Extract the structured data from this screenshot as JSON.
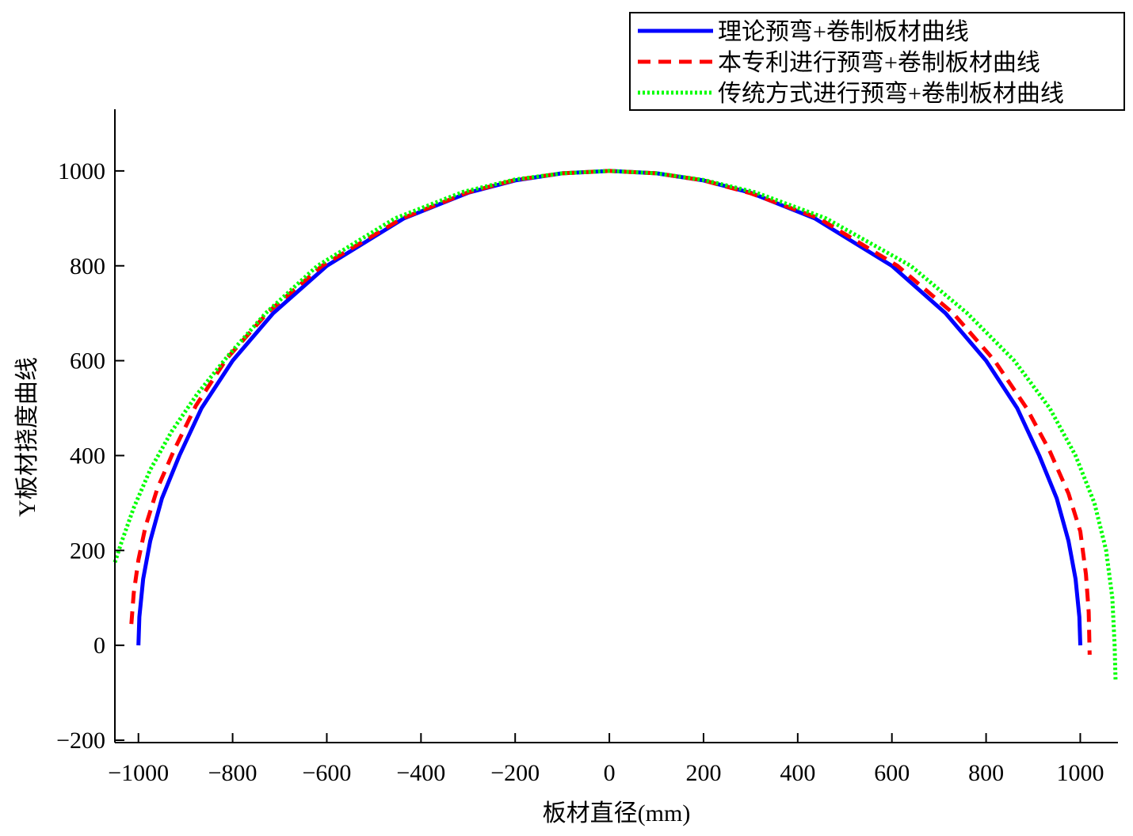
{
  "chart_data": {
    "type": "line",
    "title": "",
    "xlabel": "板材直径(mm)",
    "ylabel": "Y板材挠度曲线",
    "xlim": [
      -1050,
      1080
    ],
    "ylim": [
      -205,
      1130
    ],
    "xticks": [
      -1000,
      -800,
      -600,
      -400,
      -200,
      0,
      200,
      400,
      600,
      800,
      1000
    ],
    "xtick_labels": [
      "−1000",
      "−800",
      "−600",
      "−400",
      "−200",
      "0",
      "200",
      "400",
      "600",
      "800",
      "1000"
    ],
    "yticks": [
      -200,
      0,
      200,
      400,
      600,
      800,
      1000
    ],
    "ytick_labels": [
      "−200",
      "0",
      "200",
      "400",
      "600",
      "800",
      "1000"
    ],
    "grid": false,
    "legend_position": "top-right",
    "series": [
      {
        "name": "理论预弯+卷制板材曲线",
        "color": "#0000ff",
        "style": "solid",
        "points": [
          [
            -1000,
            0
          ],
          [
            -998,
            60
          ],
          [
            -990,
            140
          ],
          [
            -975,
            220
          ],
          [
            -950,
            310
          ],
          [
            -913,
            400
          ],
          [
            -866,
            500
          ],
          [
            -800,
            600
          ],
          [
            -714,
            700
          ],
          [
            -600,
            800
          ],
          [
            -436,
            900
          ],
          [
            -300,
            954
          ],
          [
            -200,
            980
          ],
          [
            -100,
            995
          ],
          [
            0,
            1000
          ],
          [
            100,
            995
          ],
          [
            200,
            980
          ],
          [
            300,
            954
          ],
          [
            436,
            900
          ],
          [
            600,
            800
          ],
          [
            714,
            700
          ],
          [
            800,
            600
          ],
          [
            866,
            500
          ],
          [
            913,
            400
          ],
          [
            950,
            310
          ],
          [
            975,
            220
          ],
          [
            990,
            140
          ],
          [
            998,
            60
          ],
          [
            1000,
            0
          ]
        ]
      },
      {
        "name": "本专利进行预弯+卷制板材曲线",
        "color": "#ff0000",
        "style": "dashed",
        "points": [
          [
            -1015,
            45
          ],
          [
            -1010,
            110
          ],
          [
            -1000,
            180
          ],
          [
            -985,
            250
          ],
          [
            -960,
            330
          ],
          [
            -925,
            410
          ],
          [
            -878,
            505
          ],
          [
            -812,
            605
          ],
          [
            -725,
            702
          ],
          [
            -610,
            800
          ],
          [
            -440,
            900
          ],
          [
            -300,
            955
          ],
          [
            -200,
            981
          ],
          [
            -100,
            995
          ],
          [
            0,
            1000
          ],
          [
            100,
            995
          ],
          [
            200,
            980
          ],
          [
            300,
            953
          ],
          [
            445,
            900
          ],
          [
            612,
            800
          ],
          [
            730,
            700
          ],
          [
            818,
            600
          ],
          [
            886,
            500
          ],
          [
            935,
            410
          ],
          [
            975,
            320
          ],
          [
            1000,
            240
          ],
          [
            1012,
            150
          ],
          [
            1018,
            70
          ],
          [
            1020,
            -20
          ]
        ]
      },
      {
        "name": "传统方式进行预弯+卷制板材曲线",
        "color": "#00ff00",
        "style": "dotted",
        "points": [
          [
            -1050,
            175
          ],
          [
            -1035,
            220
          ],
          [
            -1010,
            290
          ],
          [
            -975,
            370
          ],
          [
            -930,
            450
          ],
          [
            -875,
            530
          ],
          [
            -810,
            610
          ],
          [
            -730,
            700
          ],
          [
            -620,
            800
          ],
          [
            -455,
            900
          ],
          [
            -310,
            956
          ],
          [
            -200,
            982
          ],
          [
            -100,
            995
          ],
          [
            0,
            1000
          ],
          [
            100,
            995
          ],
          [
            200,
            981
          ],
          [
            310,
            955
          ],
          [
            460,
            900
          ],
          [
            640,
            800
          ],
          [
            760,
            700
          ],
          [
            860,
            600
          ],
          [
            935,
            500
          ],
          [
            990,
            400
          ],
          [
            1030,
            300
          ],
          [
            1055,
            200
          ],
          [
            1068,
            100
          ],
          [
            1073,
            0
          ],
          [
            1075,
            -75
          ]
        ]
      }
    ]
  }
}
